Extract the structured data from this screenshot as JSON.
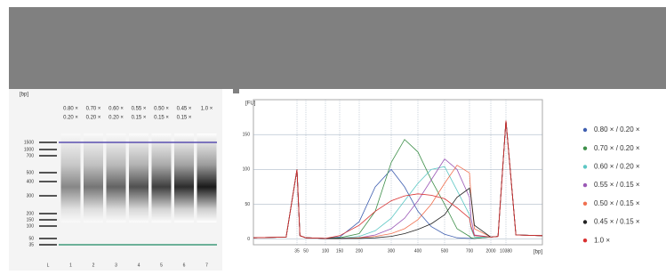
{
  "chart_data": [
    {
      "type": "gel",
      "y_label": "[bp]",
      "ladder": [
        1500,
        1000,
        700,
        500,
        400,
        300,
        200,
        150,
        100,
        50,
        35
      ],
      "headers": [
        [
          "0.80 ×",
          "0.20 ×"
        ],
        [
          "0.70 ×",
          "0.20 ×"
        ],
        [
          "0.60 ×",
          "0.20 ×"
        ],
        [
          "0.55 ×",
          "0.15 ×"
        ],
        [
          "0.50 ×",
          "0.15 ×"
        ],
        [
          "0.45 ×",
          "0.15 ×"
        ],
        [
          "1.0 ×"
        ]
      ],
      "lanes": [
        "L",
        "1",
        "2",
        "3",
        "4",
        "5",
        "6",
        "7"
      ]
    },
    {
      "type": "line",
      "y_label": "[FU]",
      "x_label": "[bp]",
      "ylim": [
        -8,
        200
      ],
      "yticks": [
        0,
        50,
        100,
        150
      ],
      "xlim": [
        15,
        20000
      ],
      "xticks": [
        35,
        50,
        100,
        150,
        200,
        300,
        400,
        500,
        700,
        2000,
        10380
      ],
      "x": [
        15,
        30,
        35,
        40,
        50,
        100,
        150,
        200,
        250,
        300,
        350,
        400,
        450,
        500,
        600,
        700,
        800,
        1000,
        2000,
        6000,
        10380,
        13000,
        20000
      ],
      "grid": true,
      "series": [
        {
          "name": "0.80 × / 0.20 ×",
          "color": "#3f5fb0",
          "values": [
            2,
            3,
            100,
            5,
            2,
            1,
            3,
            25,
            75,
            100,
            75,
            40,
            18,
            7,
            2,
            1,
            1,
            1,
            3,
            4,
            170,
            6,
            5
          ]
        },
        {
          "name": "0.70 × / 0.20 ×",
          "color": "#3e8f4a",
          "values": [
            2,
            3,
            100,
            5,
            2,
            1,
            2,
            8,
            40,
            110,
            143,
            125,
            85,
            50,
            15,
            4,
            2,
            1,
            3,
            4,
            170,
            6,
            5
          ]
        },
        {
          "name": "0.60 × / 0.20 ×",
          "color": "#5cc7c4",
          "values": [
            2,
            3,
            100,
            5,
            2,
            1,
            1,
            4,
            12,
            30,
            55,
            80,
            100,
            104,
            70,
            35,
            15,
            3,
            3,
            4,
            170,
            6,
            5
          ]
        },
        {
          "name": "0.55 × / 0.15 ×",
          "color": "#9b59b6",
          "values": [
            2,
            3,
            100,
            5,
            2,
            1,
            1,
            2,
            6,
            15,
            30,
            55,
            85,
            115,
            100,
            60,
            30,
            6,
            3,
            4,
            170,
            6,
            5
          ]
        },
        {
          "name": "0.50 × / 0.15 ×",
          "color": "#f07050",
          "values": [
            2,
            3,
            100,
            5,
            2,
            1,
            1,
            2,
            4,
            8,
            15,
            28,
            50,
            80,
            106,
            95,
            60,
            15,
            3,
            4,
            170,
            6,
            5
          ]
        },
        {
          "name": "0.45 × / 0.15 ×",
          "color": "#222222",
          "values": [
            2,
            3,
            100,
            5,
            2,
            1,
            1,
            1,
            2,
            4,
            8,
            14,
            22,
            35,
            60,
            73,
            60,
            20,
            3,
            4,
            170,
            6,
            5
          ]
        },
        {
          "name": "1.0 ×",
          "color": "#d93030",
          "values": [
            2,
            3,
            100,
            5,
            2,
            1,
            5,
            20,
            40,
            55,
            62,
            65,
            63,
            58,
            45,
            30,
            18,
            5,
            3,
            4,
            170,
            6,
            5
          ]
        }
      ]
    }
  ]
}
